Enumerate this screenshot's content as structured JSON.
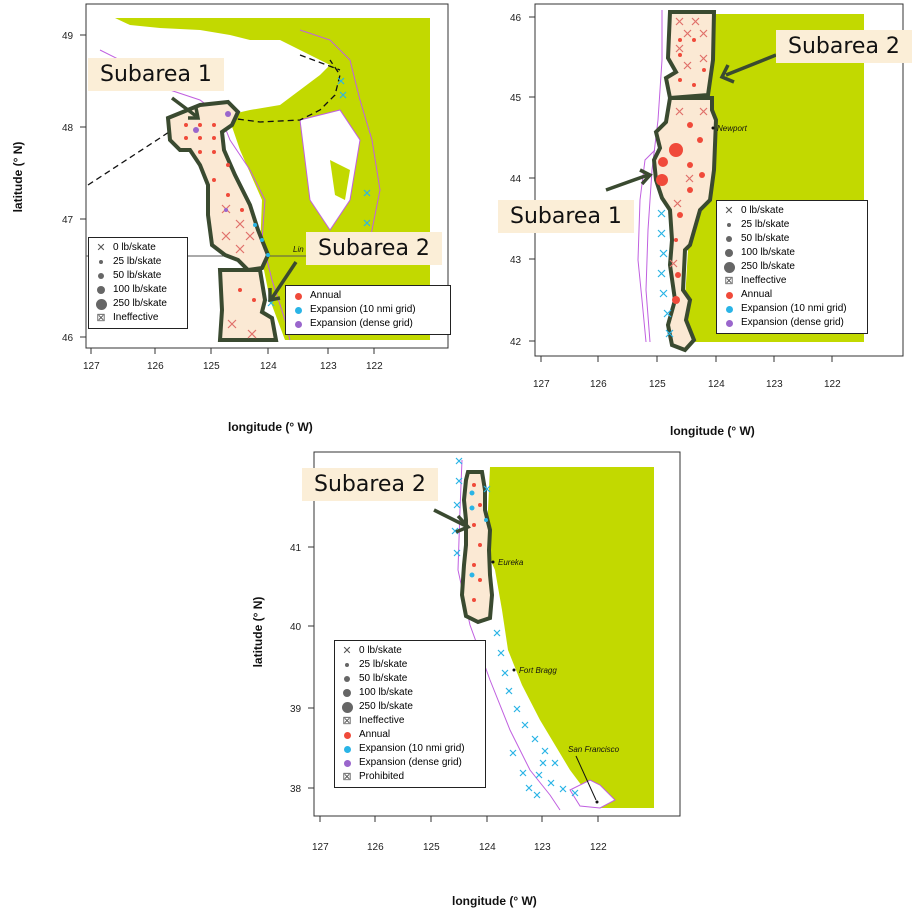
{
  "panels": [
    {
      "id": "north",
      "y_label": "latitude (° N)",
      "x_label": "longitude (° W)",
      "x_ticks": [
        "127",
        "126",
        "125",
        "124",
        "123",
        "122"
      ],
      "y_ticks": [
        "49",
        "48",
        "47",
        "46"
      ],
      "callouts": [
        "Subarea 1",
        "Subarea 2"
      ],
      "place_labels": [
        "Lin"
      ]
    },
    {
      "id": "oregon",
      "x_label": "longitude (° W)",
      "x_ticks": [
        "127",
        "126",
        "125",
        "124",
        "123",
        "122"
      ],
      "y_ticks": [
        "46",
        "45",
        "44",
        "43",
        "42"
      ],
      "callouts": [
        "Subarea 2",
        "Subarea 1"
      ],
      "place_labels": [
        "Newport"
      ]
    },
    {
      "id": "california",
      "y_label": "latitude (° N)",
      "x_label": "longitude (° W)",
      "x_ticks": [
        "127",
        "126",
        "125",
        "124",
        "123",
        "122"
      ],
      "y_ticks": [
        "41",
        "40",
        "39",
        "38"
      ],
      "callouts": [
        "Subarea 2"
      ],
      "place_labels": [
        "Eureka",
        "Fort Bragg",
        "San Francisco"
      ]
    }
  ],
  "legend_size": {
    "items": [
      "0 lb/skate",
      "25 lb/skate",
      "50 lb/skate",
      "100 lb/skate",
      "250 lb/skate",
      "Ineffective"
    ]
  },
  "legend_type": {
    "items": [
      "Annual",
      "Expansion (10 nmi grid)",
      "Expansion (dense grid)"
    ]
  },
  "legend_full": {
    "items": [
      "0 lb/skate",
      "25 lb/skate",
      "50 lb/skate",
      "100 lb/skate",
      "250 lb/skate",
      "Ineffective",
      "Annual",
      "Expansion (10 nmi grid)",
      "Expansion (dense grid)",
      "Prohibited"
    ]
  },
  "colors": {
    "land": "#c2d900",
    "annual": "#f04a3a",
    "expansion_10nmi": "#2ab4e6",
    "expansion_dense": "#9a66cc",
    "subarea_fill": "#fbe9d4",
    "subarea_outline": "#3a4a30",
    "callout_bg": "#fbeed7",
    "coast_line": "#c060e0"
  }
}
